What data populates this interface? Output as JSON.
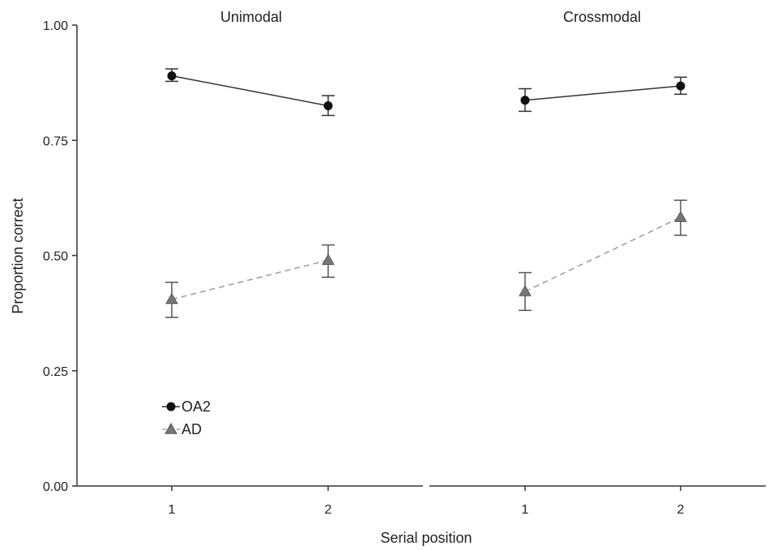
{
  "chart_data": {
    "type": "line",
    "ylabel": "Proportion correct",
    "xlabel": "Serial position",
    "ylim": [
      0,
      1
    ],
    "y_ticks": [
      "0.00",
      "0.25",
      "0.50",
      "0.75",
      "1.00"
    ],
    "categories": [
      "1",
      "2"
    ],
    "grid": false,
    "legend_position": "bottom-left of left panel",
    "panels": [
      {
        "title": "Unimodal",
        "series": [
          {
            "name": "OA2",
            "marker": "circle",
            "line": "solid",
            "color": "#111111",
            "values": [
              0.89,
              0.825
            ],
            "error_low": [
              0.878,
              0.804
            ],
            "error_high": [
              0.905,
              0.847
            ]
          },
          {
            "name": "AD",
            "marker": "triangle",
            "line": "dashed",
            "color": "#777777",
            "values": [
              0.405,
              0.49
            ],
            "error_low": [
              0.366,
              0.453
            ],
            "error_high": [
              0.442,
              0.523
            ]
          }
        ]
      },
      {
        "title": "Crossmodal",
        "series": [
          {
            "name": "OA2",
            "marker": "circle",
            "line": "solid",
            "color": "#111111",
            "values": [
              0.837,
              0.868
            ],
            "error_low": [
              0.813,
              0.85
            ],
            "error_high": [
              0.862,
              0.887
            ]
          },
          {
            "name": "AD",
            "marker": "triangle",
            "line": "dashed",
            "color": "#777777",
            "values": [
              0.422,
              0.583
            ],
            "error_low": [
              0.381,
              0.544
            ],
            "error_high": [
              0.463,
              0.62
            ]
          }
        ]
      }
    ],
    "legend": [
      {
        "name": "OA2",
        "marker": "circle",
        "color": "#111111"
      },
      {
        "name": "AD",
        "marker": "triangle",
        "color": "#777777"
      }
    ]
  }
}
